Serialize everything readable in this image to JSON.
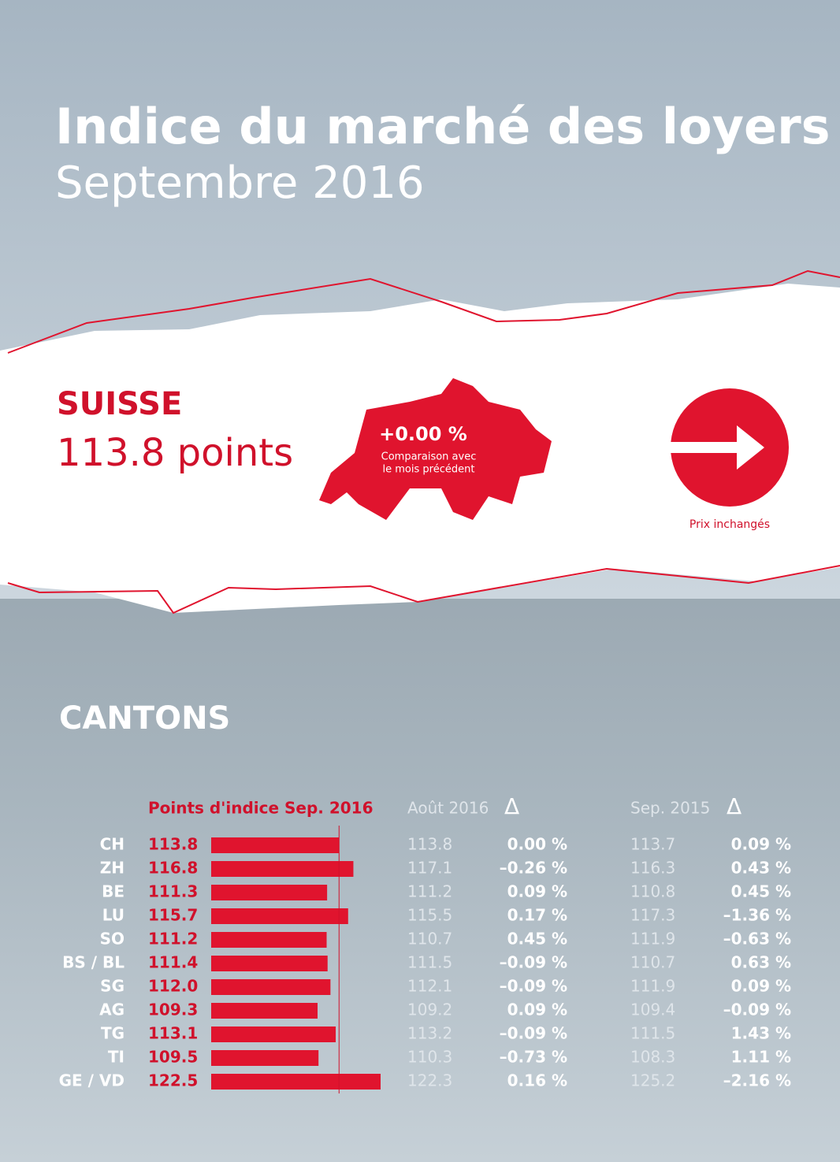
{
  "header": {
    "title": "Indice du marché des loyers",
    "subtitle": "Septembre 2016"
  },
  "suisse": {
    "label": "SUISSE",
    "points": "113.8 points",
    "change": "+0.00 %",
    "note_line1": "Comparaison avec",
    "note_line2": "le mois précédent",
    "trend": "Prix inchangés"
  },
  "cantons": {
    "title": "CANTONS",
    "headers": [
      "Points d'indice Sep. 2016",
      "Août 2016",
      "Δ",
      "Sep. 2015",
      "Δ"
    ],
    "rows": [
      [
        "CH",
        "113.8",
        "113.8",
        "0.00 %",
        "113.7",
        "0.09 %"
      ],
      [
        "ZH",
        "116.8",
        "117.1",
        "–0.26 %",
        "116.3",
        "0.43 %"
      ],
      [
        "BE",
        "111.3",
        "111.2",
        "0.09 %",
        "110.8",
        "0.45 %"
      ],
      [
        "LU",
        "115.7",
        "115.5",
        "0.17 %",
        "117.3",
        "–1.36 %"
      ],
      [
        "SO",
        "111.2",
        "110.7",
        "0.45 %",
        "111.9",
        "–0.63 %"
      ],
      [
        "BS / BL",
        "111.4",
        "111.5",
        "–0.09 %",
        "110.7",
        "0.63 %"
      ],
      [
        "SG",
        "112.0",
        "112.1",
        "–0.09 %",
        "111.9",
        "0.09 %"
      ],
      [
        "AG",
        "109.3",
        "109.2",
        "0.09 %",
        "109.4",
        "–0.09 %"
      ],
      [
        "TG",
        "113.1",
        "113.2",
        "–0.09 %",
        "111.5",
        "1.43 %"
      ],
      [
        "TI",
        "109.5",
        "110.3",
        "–0.73 %",
        "108.3",
        "1.11 %"
      ],
      [
        "GE / VD",
        "122.5",
        "122.3",
        "0.16 %",
        "125.2",
        "–2.16 %"
      ]
    ]
  }
}
